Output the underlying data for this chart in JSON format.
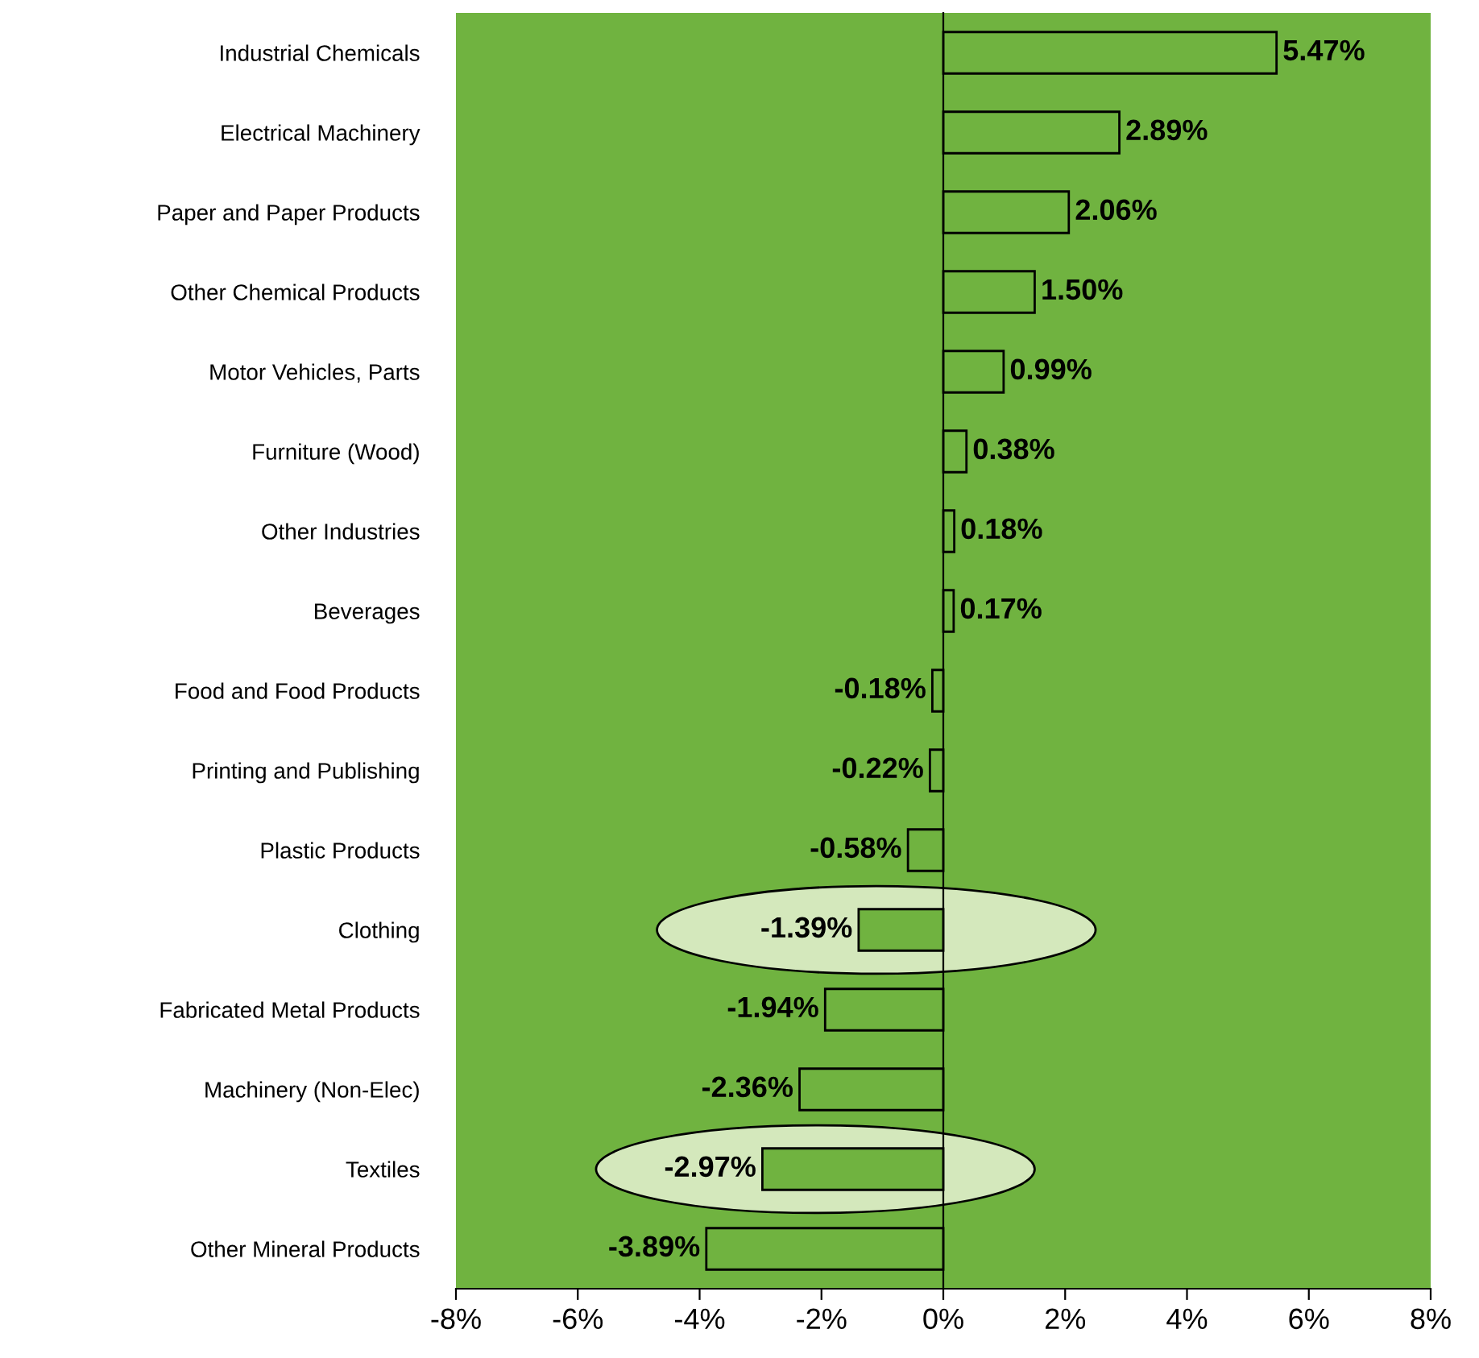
{
  "chart_data": {
    "type": "bar",
    "orientation": "horizontal",
    "categories": [
      "Industrial Chemicals",
      "Electrical Machinery",
      "Paper and Paper Products",
      "Other Chemical Products",
      "Motor Vehicles, Parts",
      "Furniture (Wood)",
      "Other Industries",
      "Beverages",
      "Food and Food Products",
      "Printing and Publishing",
      "Plastic Products",
      "Clothing",
      "Fabricated Metal Products",
      "Machinery (Non-Elec)",
      "Textiles",
      "Other Mineral Products"
    ],
    "values": [
      5.47,
      2.89,
      2.06,
      1.5,
      0.99,
      0.38,
      0.18,
      0.17,
      -0.18,
      -0.22,
      -0.58,
      -1.39,
      -1.94,
      -2.36,
      -2.97,
      -3.89
    ],
    "value_labels": [
      "5.47%",
      "2.89%",
      "2.06%",
      "1.50%",
      "0.99%",
      "0.38%",
      "0.18%",
      "0.17%",
      "-0.18%",
      "-0.22%",
      "-0.58%",
      "-1.39%",
      "-1.94%",
      "-2.36%",
      "-2.97%",
      "-3.89%"
    ],
    "color": "#70b340",
    "xlim": [
      -8,
      8
    ],
    "xticks": [
      {
        "value": -8,
        "label": "-8%"
      },
      {
        "value": -6,
        "label": "-6%"
      },
      {
        "value": -4,
        "label": "-4%"
      },
      {
        "value": -2,
        "label": "-2%"
      },
      {
        "value": 0,
        "label": "0%"
      },
      {
        "value": 2,
        "label": "2%"
      },
      {
        "value": 4,
        "label": "4%"
      },
      {
        "value": 6,
        "label": "6%"
      },
      {
        "value": 8,
        "label": "8%"
      }
    ],
    "legend": false
  }
}
